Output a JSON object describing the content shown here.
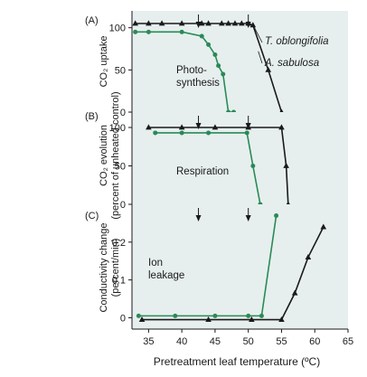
{
  "chart_data": [
    {
      "panel_label": "(A)",
      "type": "line",
      "ylabel_lines": [
        "CO₂ uptake"
      ],
      "ylim": [
        0,
        120
      ],
      "yticks": [
        0,
        50,
        100
      ],
      "xlim": [
        32.5,
        65
      ],
      "grid": false,
      "series": [
        {
          "name": "T. oblongifolia",
          "color": "#1a1a1a",
          "marker": "triangle",
          "x": [
            33,
            35,
            37,
            40,
            43,
            44,
            46,
            47,
            48,
            49,
            50,
            50.7,
            53,
            55
          ],
          "y": [
            105,
            105,
            105,
            105,
            105,
            105,
            105,
            105,
            105,
            105,
            105,
            103,
            50,
            0
          ]
        },
        {
          "name": "A. sabulosa",
          "color": "#2a8a57",
          "marker": "circle",
          "x": [
            33,
            35,
            40,
            43,
            44,
            45,
            45.5,
            46.2,
            47,
            47.8
          ],
          "y": [
            95,
            95,
            95,
            90,
            80,
            68,
            55,
            45,
            0,
            0
          ]
        }
      ],
      "arrows_x": [
        42.5,
        50
      ],
      "annotations": [
        "Photo-",
        "synthesis"
      ]
    },
    {
      "panel_label": "(B)",
      "type": "line",
      "ylabel_lines": [
        "CO₂ evolution",
        "(percent of unheated control)"
      ],
      "ylim": [
        0,
        120
      ],
      "yticks": [
        0,
        50,
        100
      ],
      "xlim": [
        32.5,
        65
      ],
      "grid": false,
      "series": [
        {
          "name": "T. oblongifolia",
          "color": "#1a1a1a",
          "marker": "triangle",
          "x": [
            35,
            40,
            45,
            50,
            55,
            55.7,
            56
          ],
          "y": [
            100,
            100,
            100,
            100,
            100,
            50,
            0
          ]
        },
        {
          "name": "A. sabulosa",
          "color": "#2a8a57",
          "marker": "circle",
          "x": [
            36,
            40,
            44,
            49.8,
            50.7,
            51.8
          ],
          "y": [
            93,
            93,
            93,
            93,
            50,
            0
          ]
        }
      ],
      "arrows_x": [
        42.5,
        50
      ],
      "annotations": [
        "Respiration"
      ]
    },
    {
      "panel_label": "(C)",
      "type": "line",
      "ylabel_lines": [
        "Conductivity change",
        "(percent/min)"
      ],
      "ylim": [
        -0.03,
        0.3
      ],
      "yticks": [
        0,
        0.1,
        0.2
      ],
      "xlim": [
        32.5,
        65
      ],
      "grid": false,
      "series": [
        {
          "name": "T. oblongifolia",
          "color": "#1a1a1a",
          "marker": "triangle",
          "x": [
            34,
            44,
            50.5,
            55,
            57,
            59,
            61.3
          ],
          "y": [
            -0.005,
            -0.005,
            -0.005,
            -0.005,
            0.065,
            0.16,
            0.24
          ]
        },
        {
          "name": "A. sabulosa",
          "color": "#2a8a57",
          "marker": "circle",
          "x": [
            33.5,
            39,
            45,
            50,
            52,
            54.2
          ],
          "y": [
            0.005,
            0.005,
            0.005,
            0.005,
            0.005,
            0.27
          ]
        }
      ],
      "arrows_x": [
        42.5,
        50
      ],
      "annotations": [
        "Ion",
        "leakage"
      ]
    }
  ],
  "series_labels": [
    "T. oblongifolia",
    "A. sabulosa"
  ],
  "xticks": [
    35,
    40,
    45,
    50,
    55,
    60,
    65
  ],
  "xlabel": "Pretreatment leaf temperature (ºC)"
}
